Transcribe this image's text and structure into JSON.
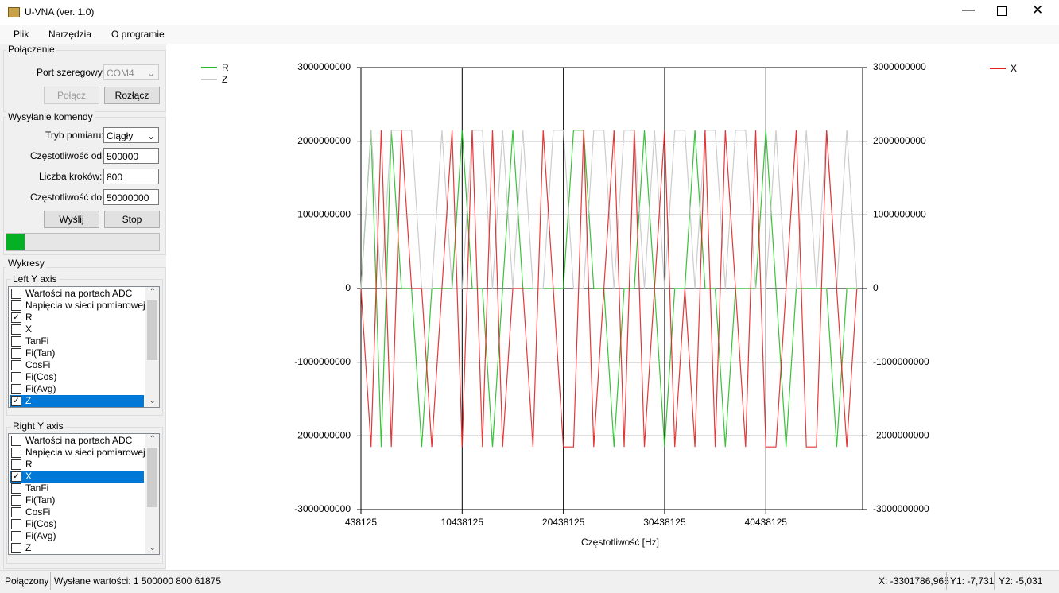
{
  "window": {
    "title": "U-VNA (ver. 1.0)"
  },
  "menu": [
    "Plik",
    "Narzędzia",
    "O programie"
  ],
  "connection": {
    "title": "Połączenie",
    "port_label": "Port szeregowy:",
    "port_value": "COM4",
    "connect": "Połącz",
    "disconnect": "Rozłącz"
  },
  "command": {
    "title": "Wysyłanie komendy",
    "mode_label": "Tryb pomiaru:",
    "mode_value": "Ciągły",
    "fstart_label": "Częstotliwość od:",
    "fstart_value": "500000",
    "steps_label": "Liczba kroków:",
    "steps_value": "800",
    "fstop_label": "Częstotliwość do:",
    "fstop_value": "50000000",
    "send": "Wyślij",
    "stop": "Stop",
    "progress": 12
  },
  "plots": {
    "title": "Wykresy",
    "left": {
      "title": "Left Y axis",
      "items": [
        {
          "label": "Wartości na portach ADC",
          "checked": false
        },
        {
          "label": "Napięcia w sieci pomiarowej",
          "checked": false
        },
        {
          "label": "R",
          "checked": true
        },
        {
          "label": "X",
          "checked": false
        },
        {
          "label": "TanFi",
          "checked": false
        },
        {
          "label": "Fi(Tan)",
          "checked": false
        },
        {
          "label": "CosFi",
          "checked": false
        },
        {
          "label": "Fi(Cos)",
          "checked": false
        },
        {
          "label": "Fi(Avg)",
          "checked": false
        },
        {
          "label": "Z",
          "checked": true,
          "selected": true
        }
      ]
    },
    "right": {
      "title": "Right Y axis",
      "items": [
        {
          "label": "Wartości na portach ADC",
          "checked": false
        },
        {
          "label": "Napięcia w sieci pomiarowej",
          "checked": false
        },
        {
          "label": "R",
          "checked": false
        },
        {
          "label": "X",
          "checked": true,
          "selected": true
        },
        {
          "label": "TanFi",
          "checked": false
        },
        {
          "label": "Fi(Tan)",
          "checked": false
        },
        {
          "label": "CosFi",
          "checked": false
        },
        {
          "label": "Fi(Cos)",
          "checked": false
        },
        {
          "label": "Fi(Avg)",
          "checked": false
        },
        {
          "label": "Z",
          "checked": false
        }
      ]
    }
  },
  "status": {
    "connected": "Połączony",
    "sent": "Wysłane wartości: 1 500000 800 61875",
    "x": "X: -3301786,965",
    "y1": "Y1: -7,731",
    "y2": "Y2: -5,031"
  },
  "chart_data": {
    "type": "line",
    "xlabel": "Częstotliwość [Hz]",
    "grid": true,
    "x": [
      438125,
      1438125,
      2438125,
      3438125,
      4438125,
      5438125,
      6438125,
      7438125,
      8438125,
      9438125,
      10438125,
      11438125,
      12438125,
      13438125,
      14438125,
      15438125,
      16438125,
      17438125,
      18438125,
      19438125,
      20438125,
      21438125,
      22438125,
      23438125,
      24438125,
      25438125,
      26438125,
      27438125,
      28438125,
      29438125,
      30438125,
      31438125,
      32438125,
      33438125,
      34438125,
      35438125,
      36438125,
      37438125,
      38438125,
      39438125,
      40438125,
      41438125,
      42438125,
      43438125,
      44438125,
      45438125,
      46438125,
      47438125,
      48438125,
      49438125
    ],
    "xlim": [
      438125,
      50000000
    ],
    "xticks": [
      438125,
      10438125,
      20438125,
      30438125,
      40438125
    ],
    "ylim": [
      -3000000000,
      3000000000
    ],
    "yticks": [
      -3000000000,
      -2000000000,
      -1000000000,
      0,
      1000000000,
      2000000000,
      3000000000
    ],
    "y2lim": [
      -3000000000,
      3000000000
    ],
    "y2ticks": [
      -3000000000,
      -2000000000,
      -1000000000,
      0,
      1000000000,
      2000000000,
      3000000000
    ],
    "series": [
      {
        "name": "R",
        "color": "#22bb22",
        "axis": "y",
        "values": [
          0,
          2150000000,
          -2150000000,
          2150000000,
          0,
          0,
          -2150000000,
          0,
          0,
          0,
          2150000000,
          0,
          0,
          -2150000000,
          0,
          2150000000,
          0,
          0,
          0,
          0,
          0,
          2150000000,
          2150000000,
          0,
          0,
          -2150000000,
          0,
          0,
          2150000000,
          0,
          -2150000000,
          0,
          0,
          2150000000,
          0,
          0,
          -2150000000,
          0,
          0,
          0,
          2150000000,
          0,
          -2150000000,
          0,
          0,
          0,
          0,
          -2150000000,
          0,
          0
        ]
      },
      {
        "name": "Z",
        "color": "#c8c8c8",
        "axis": "y",
        "values": [
          0,
          2150000000,
          0,
          2150000000,
          2150000000,
          2150000000,
          0,
          0,
          2150000000,
          0,
          0,
          2150000000,
          2150000000,
          0,
          2150000000,
          0,
          2150000000,
          0,
          0,
          2150000000,
          2150000000,
          0,
          0,
          2150000000,
          2150000000,
          0,
          2150000000,
          2150000000,
          0,
          2150000000,
          0,
          2150000000,
          2150000000,
          0,
          2150000000,
          2150000000,
          0,
          2150000000,
          2150000000,
          0,
          0,
          2150000000,
          0,
          0,
          2150000000,
          0,
          2150000000,
          0,
          2150000000,
          0
        ]
      },
      {
        "name": "X",
        "color": "#e02222",
        "axis": "y2",
        "values": [
          0,
          -2150000000,
          2150000000,
          -2150000000,
          2150000000,
          0,
          0,
          -2150000000,
          0,
          2150000000,
          -2150000000,
          2150000000,
          -2150000000,
          2150000000,
          -2150000000,
          0,
          0,
          -2150000000,
          2150000000,
          0,
          -2150000000,
          -2150000000,
          2150000000,
          -2150000000,
          0,
          2150000000,
          -2150000000,
          2150000000,
          -2150000000,
          0,
          2150000000,
          -2150000000,
          0,
          -2150000000,
          2150000000,
          -2150000000,
          2150000000,
          0,
          -2150000000,
          2150000000,
          -2150000000,
          -2150000000,
          0,
          2150000000,
          -2150000000,
          -2150000000,
          2150000000,
          0,
          -2150000000,
          0
        ]
      }
    ]
  }
}
